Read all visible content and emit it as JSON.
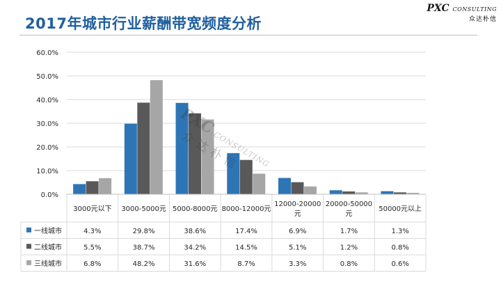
{
  "page": {
    "title": "2017年城市行业薪酬带宽频度分析"
  },
  "brand": {
    "name": "PXC",
    "sub": "CONSULTING",
    "cn": "众达朴信"
  },
  "watermark": {
    "name": "PXC",
    "sub": "CONSULTING",
    "cn": "众达朴信"
  },
  "colors": {
    "series": [
      "#2e75b6",
      "#595959",
      "#a6a6a6"
    ],
    "title": "#1f5f9f",
    "grid": "#d9d9d9"
  },
  "chart_data": {
    "type": "bar",
    "title": "",
    "xlabel": "",
    "ylabel": "",
    "ylim": [
      0,
      0.6
    ],
    "yticks": [
      "0.0%",
      "10.0%",
      "20.0%",
      "30.0%",
      "40.0%",
      "50.0%",
      "60.0%"
    ],
    "grid": true,
    "legend": "table-rows",
    "categories": [
      [
        "3000元以下"
      ],
      [
        "3000-5000元"
      ],
      [
        "5000-8000元"
      ],
      [
        "8000-12000元"
      ],
      [
        "12000-20000",
        "元"
      ],
      [
        "20000-50000",
        "元"
      ],
      [
        "50000元以上"
      ]
    ],
    "series": [
      {
        "name": "一线城市",
        "values": [
          0.043,
          0.298,
          0.386,
          0.174,
          0.069,
          0.017,
          0.013
        ],
        "labels": [
          "4.3%",
          "29.8%",
          "38.6%",
          "17.4%",
          "6.9%",
          "1.7%",
          "1.3%"
        ]
      },
      {
        "name": "二线城市",
        "values": [
          0.055,
          0.387,
          0.342,
          0.145,
          0.051,
          0.012,
          0.008
        ],
        "labels": [
          "5.5%",
          "38.7%",
          "34.2%",
          "14.5%",
          "5.1%",
          "1.2%",
          "0.8%"
        ]
      },
      {
        "name": "三线城市",
        "values": [
          0.068,
          0.482,
          0.316,
          0.087,
          0.033,
          0.008,
          0.006
        ],
        "labels": [
          "6.8%",
          "48.2%",
          "31.6%",
          "8.7%",
          "3.3%",
          "0.8%",
          "0.6%"
        ]
      }
    ]
  }
}
